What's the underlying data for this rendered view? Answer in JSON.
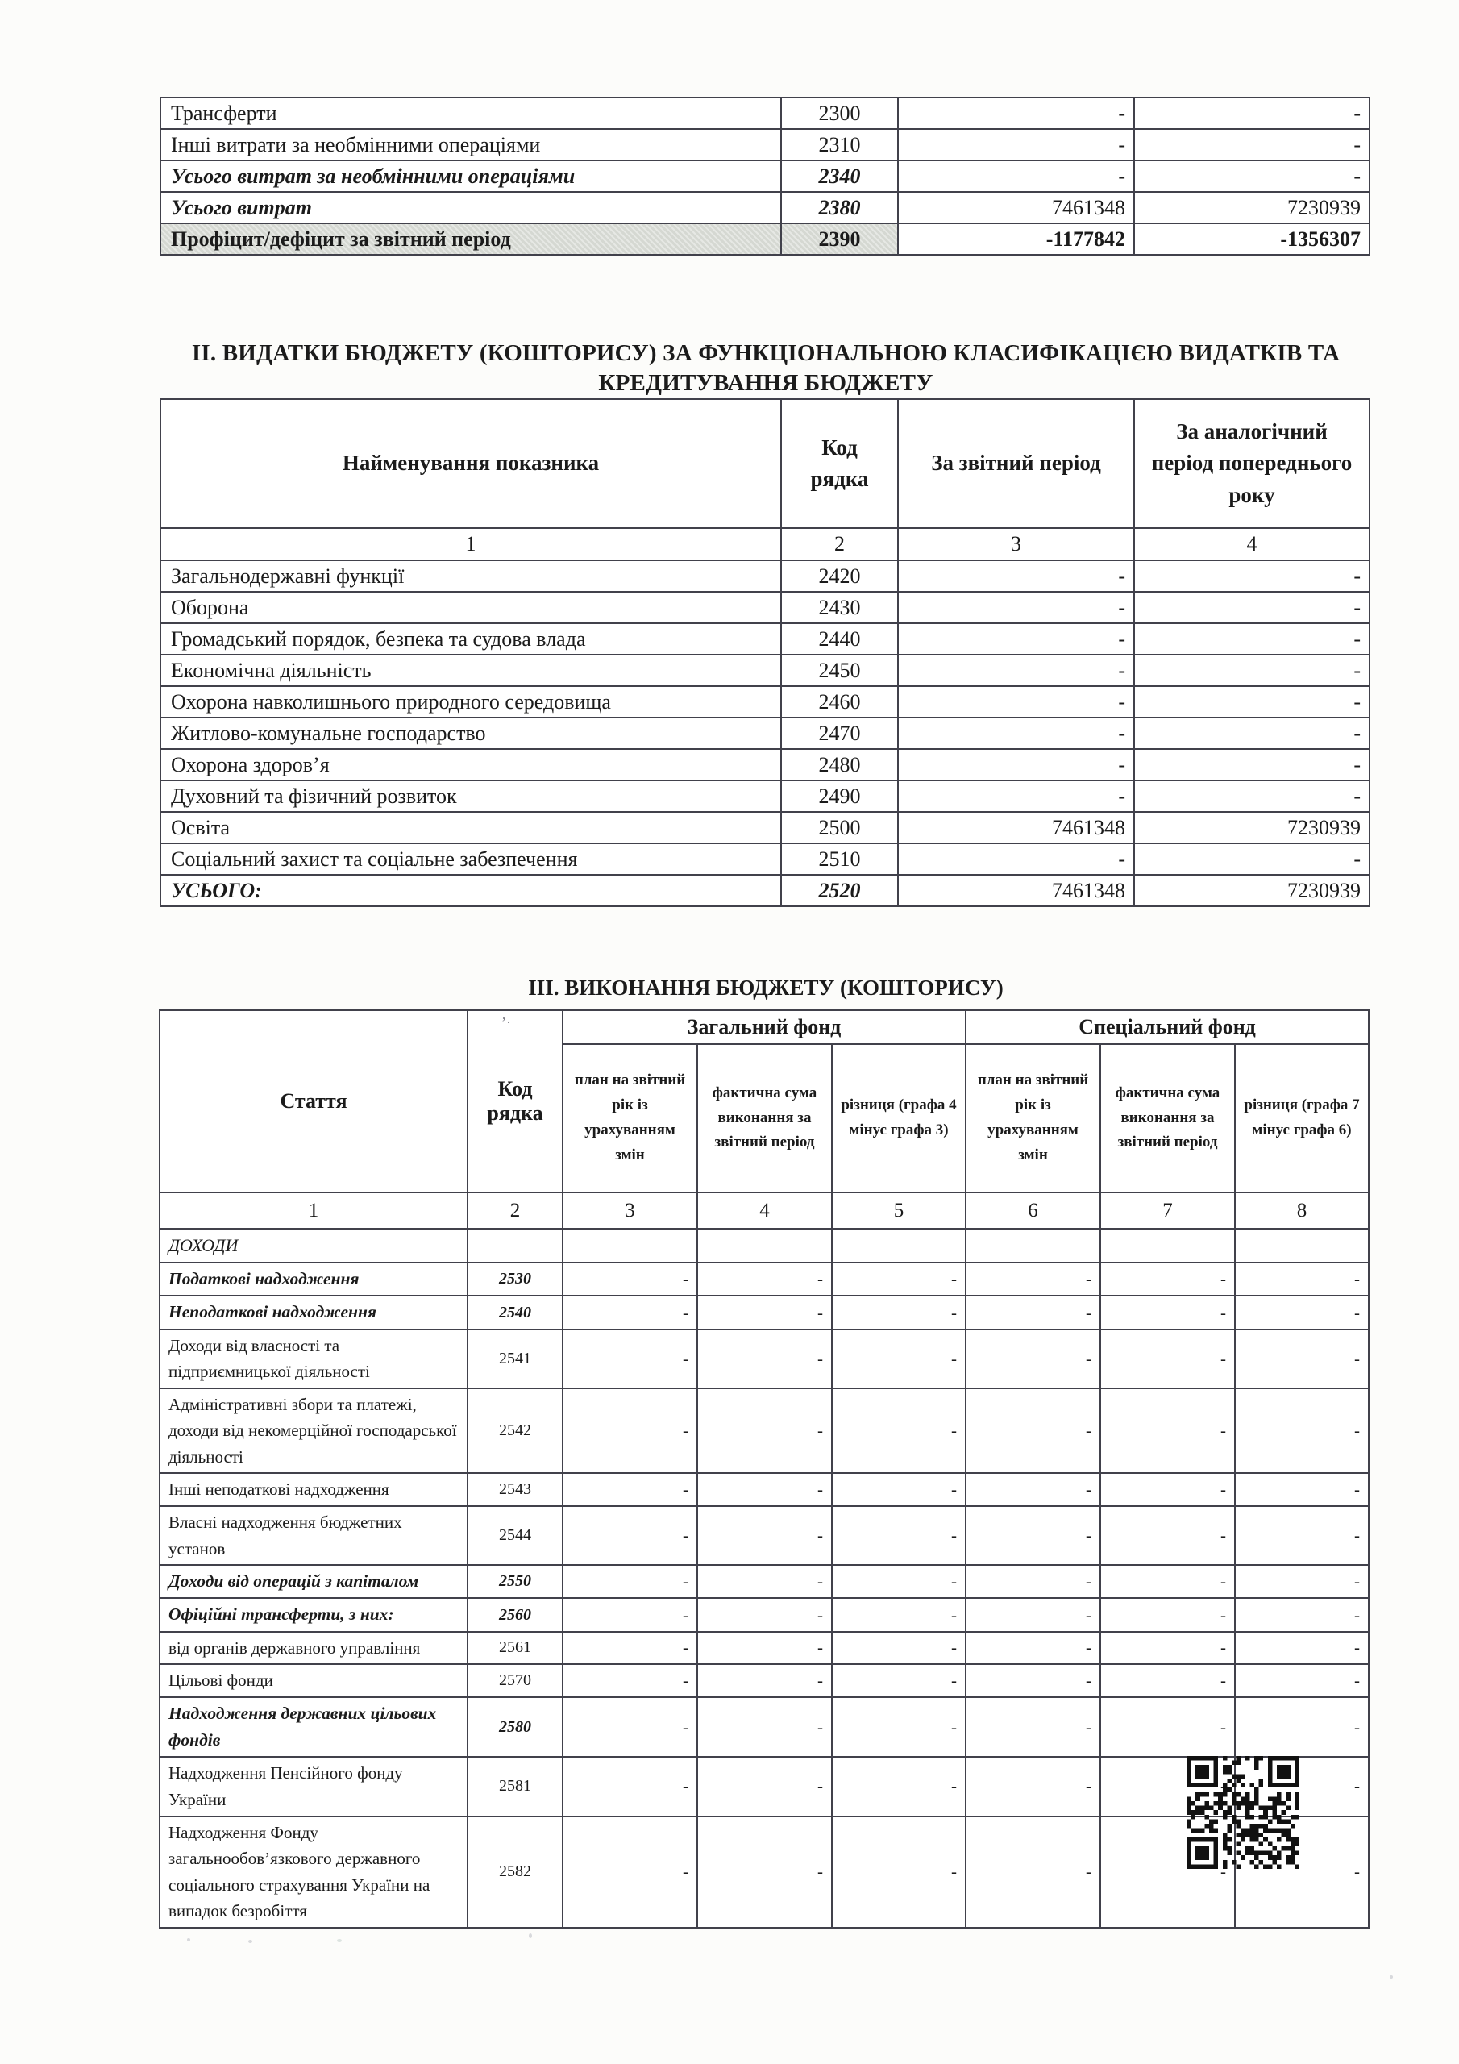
{
  "colors": {
    "page_bg": "#fcfcfa",
    "text": "#1b1b1b",
    "border": "#41414b",
    "shaded_row_bg": "#d5d8d2"
  },
  "table1": {
    "rows": [
      {
        "label": "Трансферти",
        "code": "2300",
        "values": [
          "-",
          "-"
        ],
        "style": ""
      },
      {
        "label": "Інші витрати за необмінними операціями",
        "code": "2310",
        "values": [
          "-",
          "-"
        ],
        "style": ""
      },
      {
        "label": "Усього витрат за необмінними операціями",
        "code": "2340",
        "values": [
          "-",
          "-"
        ],
        "style": "bi"
      },
      {
        "label": "Усього витрат",
        "code": "2380",
        "values": [
          "7461348",
          "7230939"
        ],
        "style": "bi"
      },
      {
        "label": "Профіцит/дефіцит за звітний період",
        "code": "2390",
        "values": [
          "-1177842",
          "-1356307"
        ],
        "style": "bold",
        "shaded": true
      }
    ]
  },
  "section2": {
    "title_line1": "ІІ. ВИДАТКИ БЮДЖЕТУ (КОШТОРИСУ) ЗА ФУНКЦІОНАЛЬНОЮ КЛАСИФІКАЦІЄЮ ВИДАТКІВ ТА",
    "title_line2": "КРЕДИТУВАННЯ БЮДЖЕТУ",
    "table": {
      "headers": [
        "Найменування показника",
        "Код рядка",
        "За звітний період",
        "За аналогічний період попереднього року"
      ],
      "col_numbers": [
        "1",
        "2",
        "3",
        "4"
      ],
      "rows": [
        {
          "label": "Загальнодержавні функції",
          "code": "2420",
          "values": [
            "-",
            "-"
          ],
          "style": ""
        },
        {
          "label": "Оборона",
          "code": "2430",
          "values": [
            "-",
            "-"
          ],
          "style": ""
        },
        {
          "label": "Громадський порядок, безпека та судова влада",
          "code": "2440",
          "values": [
            "-",
            "-"
          ],
          "style": ""
        },
        {
          "label": "Економічна діяльність",
          "code": "2450",
          "values": [
            "-",
            "-"
          ],
          "style": ""
        },
        {
          "label": "Охорона навколишнього природного середовища",
          "code": "2460",
          "values": [
            "-",
            "-"
          ],
          "style": ""
        },
        {
          "label": "Житлово-комунальне господарство",
          "code": "2470",
          "values": [
            "-",
            "-"
          ],
          "style": ""
        },
        {
          "label": "Охорона здоров’я",
          "code": "2480",
          "values": [
            "-",
            "-"
          ],
          "style": ""
        },
        {
          "label": "Духовний та фізичний розвиток",
          "code": "2490",
          "values": [
            "-",
            "-"
          ],
          "style": ""
        },
        {
          "label": "Освіта",
          "code": "2500",
          "values": [
            "7461348",
            "7230939"
          ],
          "style": ""
        },
        {
          "label": "Соціальний захист та соціальне забезпечення",
          "code": "2510",
          "values": [
            "-",
            "-"
          ],
          "style": ""
        },
        {
          "label": "УСЬОГО:",
          "code": "2520",
          "values": [
            "7461348",
            "7230939"
          ],
          "style": "bi"
        }
      ]
    }
  },
  "section3": {
    "title": "ІІІ. ВИКОНАННЯ БЮДЖЕТУ (КОШТОРИСУ)",
    "table": {
      "col1_header": "Стаття",
      "col2_header": "Код рядка",
      "group_headers": [
        "Загальний фонд",
        "Спеціальний фонд"
      ],
      "sub_headers": [
        "план на звітний рік із урахуванням змін",
        "фактична сума виконання за звітний період",
        "різниця (графа 4 мінус графа 3)",
        "план на звітний рік із урахуванням змін",
        "фактична сума виконання за звітний період",
        "різниця (графа 7 мінус графа 6)"
      ],
      "col_numbers": [
        "1",
        "2",
        "3",
        "4",
        "5",
        "6",
        "7",
        "8"
      ],
      "rows": [
        {
          "label": "ДОХОДИ",
          "code": "",
          "values": [
            "",
            "",
            "",
            "",
            "",
            ""
          ],
          "style": "section"
        },
        {
          "label": "Податкові надходження",
          "code": "2530",
          "values": [
            "-",
            "-",
            "-",
            "-",
            "-",
            "-"
          ],
          "style": "bi"
        },
        {
          "label": "Неподаткові надходження",
          "code": "2540",
          "values": [
            "-",
            "-",
            "-",
            "-",
            "-",
            "-"
          ],
          "style": "bi"
        },
        {
          "label": "Доходи від власності та підприємницької діяльності",
          "code": "2541",
          "values": [
            "-",
            "-",
            "-",
            "-",
            "-",
            "-"
          ],
          "style": ""
        },
        {
          "label": "Адміністративні збори та платежі, доходи від некомерційної господарської діяльності",
          "code": "2542",
          "values": [
            "-",
            "-",
            "-",
            "-",
            "-",
            "-"
          ],
          "style": ""
        },
        {
          "label": "Інші неподаткові надходження",
          "code": "2543",
          "values": [
            "-",
            "-",
            "-",
            "-",
            "-",
            "-"
          ],
          "style": ""
        },
        {
          "label": "Власні надходження бюджетних установ",
          "code": "2544",
          "values": [
            "-",
            "-",
            "-",
            "-",
            "-",
            "-"
          ],
          "style": ""
        },
        {
          "label": "Доходи від операцій з капіталом",
          "code": "2550",
          "values": [
            "-",
            "-",
            "-",
            "-",
            "-",
            "-"
          ],
          "style": "bi"
        },
        {
          "label": "Офіційні трансферти, з них:",
          "code": "2560",
          "values": [
            "-",
            "-",
            "-",
            "-",
            "-",
            "-"
          ],
          "style": "bi"
        },
        {
          "label": "від органів державного управління",
          "code": "2561",
          "values": [
            "-",
            "-",
            "-",
            "-",
            "-",
            "-"
          ],
          "style": ""
        },
        {
          "label": "Цільові фонди",
          "code": "2570",
          "values": [
            "-",
            "-",
            "-",
            "-",
            "-",
            "-"
          ],
          "style": ""
        },
        {
          "label": "Надходження державних цільових фондів",
          "code": "2580",
          "values": [
            "-",
            "-",
            "-",
            "-",
            "-",
            "-"
          ],
          "style": "bi"
        },
        {
          "label": "Надходження Пенсійного фонду України",
          "code": "2581",
          "values": [
            "-",
            "-",
            "-",
            "-",
            "-",
            "-"
          ],
          "style": ""
        },
        {
          "label": "Надходження Фонду загальнообов’язкового державного соціального страхування України на випадок безробіття",
          "code": "2582",
          "values": [
            "-",
            "-",
            "-",
            "-",
            "-",
            "-"
          ],
          "style": ""
        }
      ]
    }
  }
}
